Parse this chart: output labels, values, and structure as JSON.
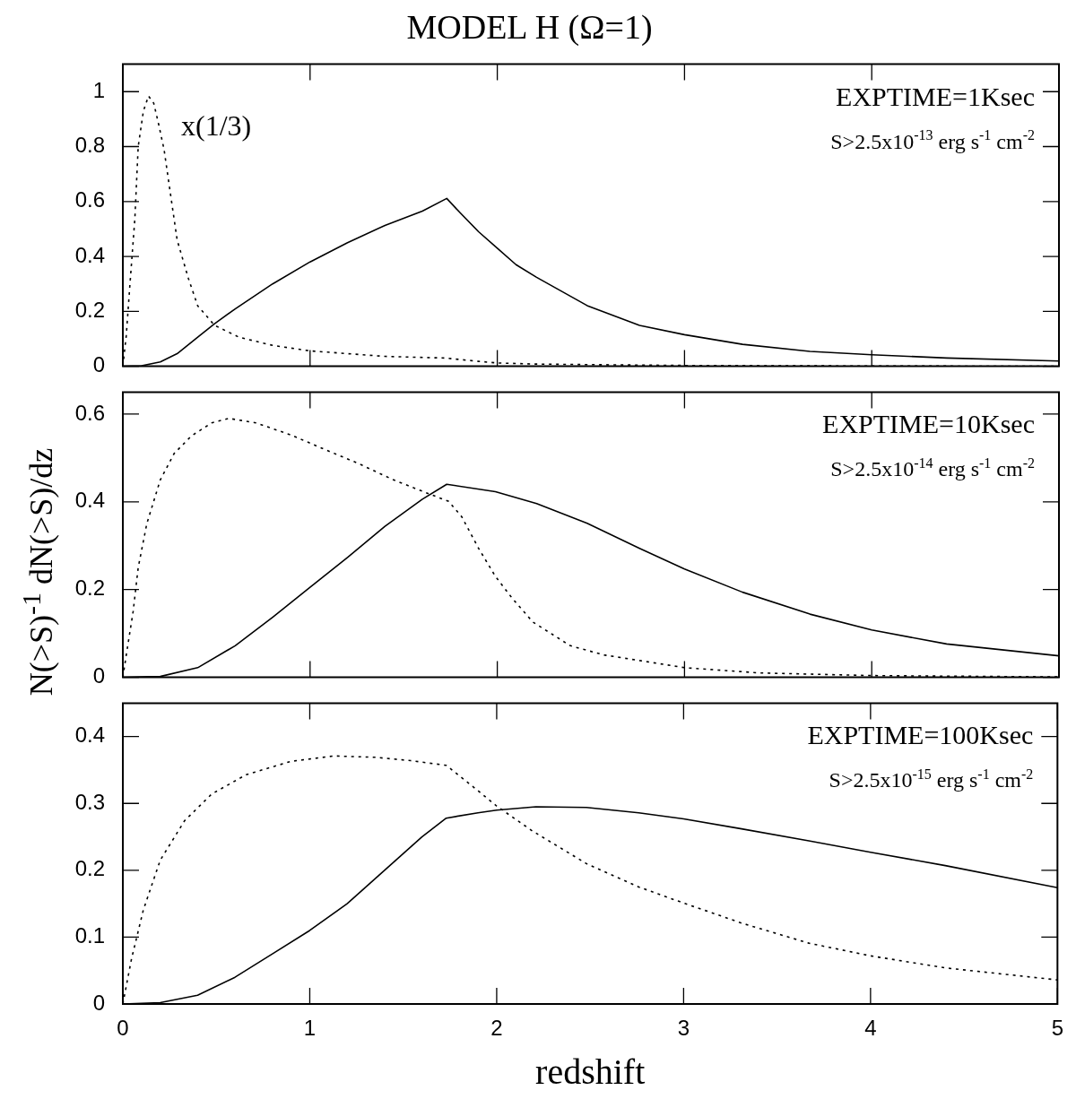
{
  "chart_data": [
    {
      "type": "line",
      "title": "MODEL H (Ω=1)",
      "xlim": [
        0,
        5
      ],
      "xticks": [
        0,
        1,
        2,
        3,
        4,
        5
      ],
      "ylim": [
        0,
        1.1
      ],
      "yticks": [
        0,
        0.2,
        0.4,
        0.6,
        0.8,
        1
      ],
      "tick_labels": "y",
      "annotations": [
        "EXPTIME=1Ksec",
        "S>2.5x10$^{-13}$ erg s$^{-1}$ cm$^{-2}$",
        "x(1/3)"
      ],
      "series": [
        {
          "color": "#000000",
          "line_style": "solid",
          "x": [
            0,
            0.1,
            0.2,
            0.29,
            0.4,
            0.49,
            0.6,
            0.8,
            1.0,
            1.2,
            1.4,
            1.6,
            1.73,
            1.8,
            1.9,
            2.0,
            2.1,
            2.21,
            2.48,
            2.76,
            3.0,
            3.31,
            3.67,
            4.0,
            4.4,
            5.0
          ],
          "values": [
            0,
            0.002,
            0.016,
            0.046,
            0.106,
            0.155,
            0.209,
            0.3,
            0.38,
            0.45,
            0.513,
            0.565,
            0.611,
            0.56,
            0.49,
            0.43,
            0.37,
            0.324,
            0.221,
            0.149,
            0.115,
            0.08,
            0.054,
            0.042,
            0.03,
            0.019
          ]
        },
        {
          "color": "#000000",
          "line_style": "dotted",
          "x": [
            0,
            0.018,
            0.037,
            0.064,
            0.082,
            0.11,
            0.137,
            0.165,
            0.19,
            0.22,
            0.256,
            0.29,
            0.35,
            0.4,
            0.49,
            0.62,
            0.8,
            1.0,
            1.4,
            1.72,
            1.9,
            2.0,
            2.21,
            2.5,
            3.0,
            4.0,
            5.0
          ],
          "values": [
            0,
            0.11,
            0.29,
            0.535,
            0.8,
            0.93,
            0.984,
            0.958,
            0.885,
            0.79,
            0.62,
            0.46,
            0.32,
            0.22,
            0.149,
            0.106,
            0.076,
            0.056,
            0.036,
            0.03,
            0.018,
            0.012,
            0.008,
            0.006,
            0.003,
            0.001,
            0
          ]
        }
      ]
    },
    {
      "type": "line",
      "ylabel": "N(>S)$^{-1}$ dN(>S)/dz",
      "xlim": [
        0,
        5
      ],
      "xticks": [
        0,
        1,
        2,
        3,
        4,
        5
      ],
      "ylim": [
        0,
        0.65
      ],
      "yticks": [
        0,
        0.2,
        0.4,
        0.6
      ],
      "tick_labels": "y",
      "annotations": [
        "EXPTIME=10Ksec",
        "S>2.5x10$^{-14}$ erg s$^{-1}$ cm$^{-2}$"
      ],
      "series": [
        {
          "color": "#000000",
          "line_style": "solid",
          "x": [
            0,
            0.2,
            0.4,
            0.6,
            0.8,
            1.0,
            1.2,
            1.4,
            1.6,
            1.73,
            1.99,
            2.21,
            2.48,
            2.76,
            3.0,
            3.31,
            3.67,
            4.0,
            4.4,
            5.0
          ],
          "values": [
            0,
            0.002,
            0.022,
            0.072,
            0.137,
            0.205,
            0.273,
            0.344,
            0.406,
            0.44,
            0.423,
            0.396,
            0.351,
            0.294,
            0.247,
            0.194,
            0.144,
            0.108,
            0.076,
            0.049
          ]
        },
        {
          "color": "#000000",
          "line_style": "dotted",
          "x": [
            0,
            0.018,
            0.055,
            0.082,
            0.128,
            0.2,
            0.274,
            0.366,
            0.475,
            0.567,
            0.71,
            0.9,
            1.08,
            1.26,
            1.44,
            1.63,
            1.74,
            1.81,
            1.9,
            1.99,
            2.08,
            2.19,
            2.39,
            2.57,
            3.0,
            3.4,
            4.0,
            5.0
          ],
          "values": [
            0,
            0.05,
            0.15,
            0.25,
            0.35,
            0.45,
            0.51,
            0.55,
            0.58,
            0.59,
            0.58,
            0.552,
            0.519,
            0.487,
            0.451,
            0.419,
            0.401,
            0.366,
            0.294,
            0.23,
            0.18,
            0.126,
            0.072,
            0.051,
            0.022,
            0.01,
            0.004,
            0.001
          ]
        }
      ]
    },
    {
      "type": "line",
      "xlabel": "redshift",
      "xlim": [
        0,
        5
      ],
      "xticks": [
        0,
        1,
        2,
        3,
        4,
        5
      ],
      "ylim": [
        0,
        0.45
      ],
      "yticks": [
        0,
        0.1,
        0.2,
        0.3,
        0.4
      ],
      "annotations": [
        "EXPTIME=100Ksec",
        "S>2.5x10$^{-15}$ erg s$^{-1}$ cm$^{-2}$"
      ],
      "series": [
        {
          "color": "#000000",
          "line_style": "solid",
          "x": [
            0,
            0.2,
            0.4,
            0.6,
            0.8,
            1.0,
            1.2,
            1.4,
            1.6,
            1.73,
            1.9,
            2.0,
            2.21,
            2.48,
            2.76,
            3.0,
            3.31,
            3.67,
            4.0,
            4.4,
            5.0
          ],
          "values": [
            0,
            0.002,
            0.013,
            0.04,
            0.075,
            0.11,
            0.15,
            0.2,
            0.25,
            0.278,
            0.286,
            0.29,
            0.295,
            0.294,
            0.286,
            0.277,
            0.262,
            0.244,
            0.227,
            0.207,
            0.174
          ]
        },
        {
          "color": "#000000",
          "line_style": "dotted",
          "x": [
            0,
            0.046,
            0.11,
            0.2,
            0.33,
            0.475,
            0.66,
            0.9,
            1.13,
            1.35,
            1.54,
            1.73,
            1.9,
            2.0,
            2.19,
            2.48,
            2.76,
            3.0,
            3.31,
            3.67,
            4.0,
            4.4,
            5.0
          ],
          "values": [
            0,
            0.067,
            0.141,
            0.215,
            0.274,
            0.314,
            0.343,
            0.363,
            0.371,
            0.369,
            0.364,
            0.357,
            0.319,
            0.296,
            0.259,
            0.21,
            0.175,
            0.151,
            0.121,
            0.091,
            0.072,
            0.054,
            0.036
          ]
        }
      ]
    }
  ]
}
